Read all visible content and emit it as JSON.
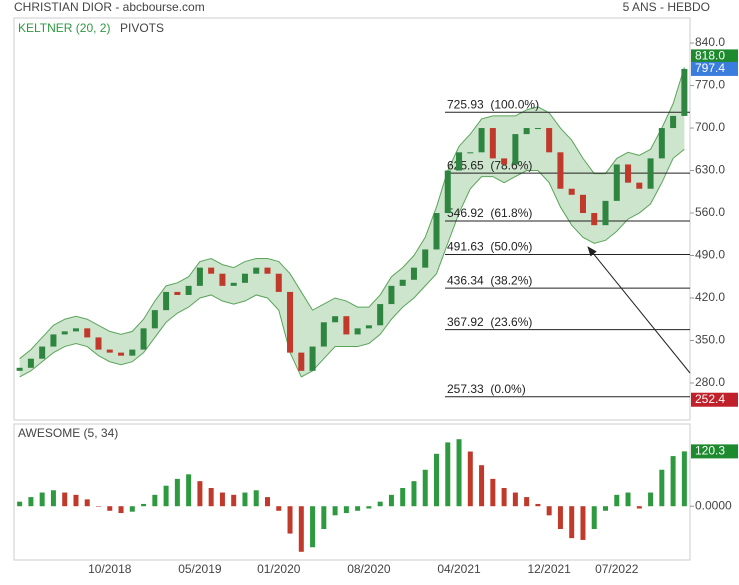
{
  "chart_data": [
    {
      "type": "candlestick",
      "title": "CHRISTIAN DIOR - abcbourse.com",
      "subtitle": "5 ANS - HEBDO",
      "indicators": [
        "KELTNER (20, 2)",
        "PIVOTS"
      ],
      "open": [
        300,
        305,
        320,
        340,
        360,
        365,
        370,
        355,
        335,
        330,
        325,
        335,
        370,
        400,
        430,
        425,
        440,
        470,
        460,
        440,
        445,
        460,
        470,
        460,
        430,
        330,
        300,
        340,
        380,
        390,
        360,
        370,
        375,
        410,
        440,
        450,
        470,
        500,
        560,
        630,
        660,
        660,
        700,
        650,
        640,
        690,
        700,
        700,
        660,
        600,
        590,
        560,
        540,
        580,
        640,
        610,
        600,
        650,
        700,
        720
      ],
      "close": [
        305,
        320,
        340,
        360,
        365,
        370,
        355,
        335,
        330,
        325,
        335,
        370,
        400,
        430,
        425,
        440,
        470,
        460,
        440,
        445,
        460,
        470,
        460,
        430,
        330,
        300,
        340,
        380,
        390,
        360,
        370,
        375,
        410,
        440,
        450,
        470,
        500,
        560,
        630,
        660,
        660,
        700,
        650,
        640,
        690,
        700,
        700,
        660,
        600,
        590,
        560,
        540,
        580,
        640,
        610,
        600,
        650,
        700,
        720,
        797.4
      ],
      "keltner_upper": [
        320,
        335,
        355,
        375,
        385,
        390,
        385,
        375,
        365,
        360,
        365,
        385,
        415,
        440,
        445,
        455,
        480,
        485,
        475,
        470,
        480,
        485,
        485,
        480,
        460,
        430,
        400,
        410,
        420,
        415,
        405,
        405,
        425,
        455,
        470,
        490,
        520,
        570,
        630,
        670,
        690,
        715,
        720,
        720,
        720,
        730,
        735,
        725,
        700,
        680,
        650,
        625,
        625,
        650,
        660,
        655,
        665,
        700,
        740,
        800
      ],
      "keltner_lower": [
        290,
        300,
        315,
        330,
        340,
        345,
        340,
        325,
        315,
        310,
        315,
        330,
        355,
        380,
        395,
        405,
        420,
        425,
        415,
        410,
        415,
        425,
        420,
        400,
        330,
        290,
        300,
        320,
        340,
        340,
        340,
        345,
        360,
        385,
        405,
        420,
        440,
        460,
        510,
        560,
        600,
        620,
        620,
        610,
        620,
        630,
        630,
        610,
        570,
        540,
        520,
        510,
        515,
        530,
        550,
        560,
        575,
        610,
        650,
        665
      ],
      "up_color": "#2e8540",
      "down_color": "#c0392b",
      "band_color": "#5aa55a",
      "ylim": [
        219,
        878
      ],
      "yticks": [
        {
          "value": 840,
          "label": "840.0"
        },
        {
          "value": 770,
          "label": "770.0"
        },
        {
          "value": 700,
          "label": "700.0"
        },
        {
          "value": 630,
          "label": "630.0"
        },
        {
          "value": 560,
          "label": "560.0"
        },
        {
          "value": 490,
          "label": "490.0"
        },
        {
          "value": 420,
          "label": "420.0"
        },
        {
          "value": 350,
          "label": "350.0"
        },
        {
          "value": 280,
          "label": "280.0"
        }
      ],
      "fib_levels": [
        {
          "value": 725.93,
          "label": "725.93  (100.0%)"
        },
        {
          "value": 625.65,
          "label": "625.65  (78.6%)"
        },
        {
          "value": 546.92,
          "label": "546.92  (61.8%)"
        },
        {
          "value": 491.63,
          "label": "491.63  (50.0%)"
        },
        {
          "value": 436.34,
          "label": "436.34  (38.2%)"
        },
        {
          "value": 367.92,
          "label": "367.92  (23.6%)"
        },
        {
          "value": 257.33,
          "label": "257.33  (0.0%)"
        }
      ],
      "price_tags": [
        {
          "value": 818,
          "label": "818.0",
          "color": "#1e8a2e"
        },
        {
          "value": 797.4,
          "label": "797.4",
          "color": "#3b7ddd"
        },
        {
          "value": 252.4,
          "label": "252.4",
          "color": "#c0202a"
        }
      ]
    },
    {
      "type": "bar",
      "title": "AWESOME (5, 34)",
      "categories": [
        null,
        null,
        null,
        null,
        null,
        null,
        null,
        null,
        "10/2018",
        null,
        null,
        null,
        null,
        null,
        null,
        null,
        "05/2019",
        null,
        null,
        null,
        null,
        null,
        null,
        "01/2020",
        null,
        null,
        null,
        null,
        null,
        null,
        null,
        "08/2020",
        null,
        null,
        null,
        null,
        null,
        null,
        null,
        "04/2021",
        null,
        null,
        null,
        null,
        null,
        null,
        null,
        "12/2021",
        null,
        null,
        null,
        null,
        null,
        "07/2022",
        null,
        null,
        null,
        null,
        null,
        null
      ],
      "values": [
        10,
        20,
        30,
        35,
        30,
        25,
        15,
        0,
        -10,
        -15,
        -12,
        5,
        25,
        45,
        60,
        70,
        55,
        40,
        30,
        25,
        30,
        35,
        20,
        -10,
        -60,
        -100,
        -90,
        -50,
        -20,
        -15,
        -10,
        -5,
        10,
        25,
        40,
        55,
        80,
        115,
        140,
        147,
        120,
        90,
        60,
        40,
        30,
        20,
        5,
        -20,
        -50,
        -70,
        -74,
        -50,
        -10,
        25,
        30,
        -5,
        30,
        80,
        110,
        120.3
      ],
      "up_color": "#2e9a40",
      "down_color": "#c0392b",
      "ylim": [
        -118,
        176
      ],
      "yticks": [
        {
          "value": 0,
          "label": "0.0000"
        }
      ],
      "price_tags": [
        {
          "value": 120.3,
          "label": "120.3",
          "color": "#1e8a2e"
        }
      ]
    }
  ]
}
